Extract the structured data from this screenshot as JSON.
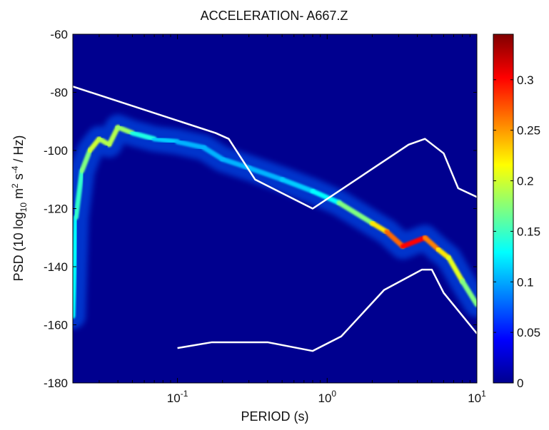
{
  "chart_data": {
    "type": "heatmap",
    "title": "ACCELERATION- A667.Z",
    "xlabel": "PERIOD (s)",
    "ylabel_parts": {
      "pre": "PSD (10 log",
      "sub": "10",
      "mid": " m",
      "sup1": "2",
      "mid2": " s",
      "sup2": "-4",
      "post": " / Hz)"
    },
    "x_scale": "log",
    "xlim": [
      0.02,
      10
    ],
    "ylim": [
      -180,
      -60
    ],
    "x_ticks": [
      {
        "v": 0.1,
        "base": "10",
        "exp": "-1"
      },
      {
        "v": 1,
        "base": "10",
        "exp": "0"
      },
      {
        "v": 10,
        "base": "10",
        "exp": "1"
      }
    ],
    "y_ticks": [
      "-60",
      "-80",
      "-100",
      "-120",
      "-140",
      "-160",
      "-180"
    ],
    "colorbar": {
      "range": [
        0,
        0.345
      ],
      "ticks": [
        "0",
        "0.05",
        "0.1",
        "0.15",
        "0.2",
        "0.25",
        "0.3"
      ],
      "colormap": "jet"
    },
    "background_color": "#00008f",
    "ridge_psd": [
      {
        "x": 0.02,
        "y": -157,
        "w": 0.35
      },
      {
        "x": 0.021,
        "y": -123,
        "w": 0.4
      },
      {
        "x": 0.023,
        "y": -107,
        "w": 0.45
      },
      {
        "x": 0.026,
        "y": -100,
        "w": 0.55
      },
      {
        "x": 0.03,
        "y": -96,
        "w": 0.6
      },
      {
        "x": 0.035,
        "y": -98,
        "w": 0.5
      },
      {
        "x": 0.04,
        "y": -92,
        "w": 0.6
      },
      {
        "x": 0.05,
        "y": -94,
        "w": 0.45
      },
      {
        "x": 0.07,
        "y": -96,
        "w": 0.35
      },
      {
        "x": 0.1,
        "y": -97,
        "w": 0.3
      },
      {
        "x": 0.15,
        "y": -99,
        "w": 0.3
      },
      {
        "x": 0.2,
        "y": -103,
        "w": 0.3
      },
      {
        "x": 0.3,
        "y": -106,
        "w": 0.3
      },
      {
        "x": 0.5,
        "y": -110,
        "w": 0.3
      },
      {
        "x": 0.8,
        "y": -114,
        "w": 0.35
      },
      {
        "x": 1.2,
        "y": -118,
        "w": 0.4
      },
      {
        "x": 2.0,
        "y": -125,
        "w": 0.6
      },
      {
        "x": 2.5,
        "y": -128,
        "w": 0.7
      },
      {
        "x": 3.2,
        "y": -133,
        "w": 0.85
      },
      {
        "x": 4.5,
        "y": -130,
        "w": 0.9
      },
      {
        "x": 5.5,
        "y": -134,
        "w": 0.6
      },
      {
        "x": 6.5,
        "y": -137,
        "w": 0.7
      },
      {
        "x": 8.0,
        "y": -145,
        "w": 0.5
      },
      {
        "x": 10,
        "y": -153,
        "w": 0.5
      }
    ],
    "nhnm": [
      {
        "x": 0.02,
        "y": -78
      },
      {
        "x": 0.18,
        "y": -94
      },
      {
        "x": 0.22,
        "y": -96
      },
      {
        "x": 0.33,
        "y": -110
      },
      {
        "x": 0.8,
        "y": -120
      },
      {
        "x": 3.5,
        "y": -98
      },
      {
        "x": 4.5,
        "y": -96
      },
      {
        "x": 6.0,
        "y": -101
      },
      {
        "x": 7.5,
        "y": -113
      },
      {
        "x": 10,
        "y": -116
      }
    ],
    "nlnm": [
      {
        "x": 0.1,
        "y": -168
      },
      {
        "x": 0.17,
        "y": -166
      },
      {
        "x": 0.4,
        "y": -166
      },
      {
        "x": 0.8,
        "y": -169
      },
      {
        "x": 1.24,
        "y": -164
      },
      {
        "x": 2.4,
        "y": -148
      },
      {
        "x": 4.3,
        "y": -141
      },
      {
        "x": 5.0,
        "y": -141
      },
      {
        "x": 6.0,
        "y": -149
      },
      {
        "x": 10,
        "y": -163
      }
    ]
  }
}
